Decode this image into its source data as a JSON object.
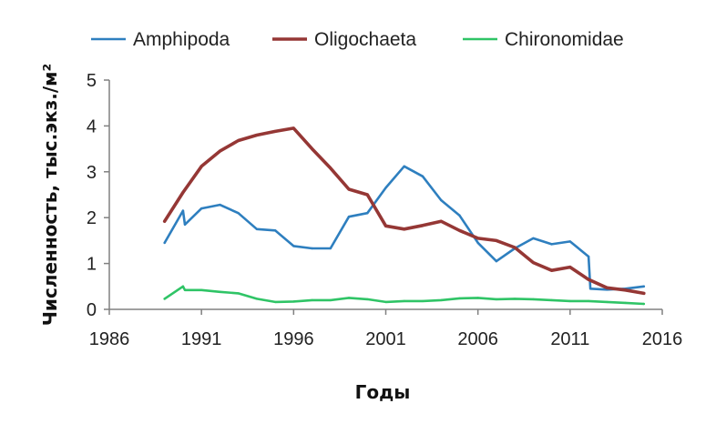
{
  "chart_data": {
    "type": "line",
    "title": "",
    "xlabel": "Годы",
    "ylabel": "Численность, тыс.экз./м²",
    "xlim": [
      1986,
      2016
    ],
    "ylim": [
      0,
      5
    ],
    "x_ticks": [
      "1986",
      "1991",
      "1996",
      "2001",
      "2006",
      "2011",
      "2016"
    ],
    "y_ticks": [
      "0",
      "1",
      "2",
      "3",
      "4",
      "5"
    ],
    "grid": false,
    "legend_position": "top",
    "series": [
      {
        "name": "Amphipoda",
        "color": "#2e7fbf",
        "x": [
          1989,
          1990,
          1990.1,
          1991,
          1992,
          1993,
          1994,
          1995,
          1996,
          1997,
          1998,
          1999,
          2000,
          2001,
          2002,
          2003,
          2004,
          2005,
          2006,
          2007,
          2008,
          2009,
          2010,
          2011,
          2012,
          2012.1,
          2013,
          2014,
          2015
        ],
        "y": [
          1.45,
          2.15,
          1.85,
          2.2,
          2.28,
          2.1,
          1.75,
          1.72,
          1.38,
          1.33,
          1.33,
          2.02,
          2.1,
          2.65,
          3.12,
          2.9,
          2.38,
          2.05,
          1.45,
          1.05,
          1.33,
          1.55,
          1.42,
          1.48,
          1.15,
          0.45,
          0.43,
          0.45,
          0.5
        ]
      },
      {
        "name": "Oligochaeta",
        "color": "#953735",
        "x": [
          1989,
          1990,
          1991,
          1992,
          1993,
          1994,
          1995,
          1996,
          1997,
          1998,
          1999,
          2000,
          2001,
          2002,
          2003,
          2004,
          2005,
          2006,
          2007,
          2008,
          2009,
          2010,
          2011,
          2012,
          2013,
          2014,
          2015
        ],
        "y": [
          1.92,
          2.55,
          3.12,
          3.45,
          3.68,
          3.8,
          3.88,
          3.95,
          3.5,
          3.08,
          2.62,
          2.5,
          1.82,
          1.75,
          1.83,
          1.92,
          1.72,
          1.55,
          1.5,
          1.35,
          1.02,
          0.85,
          0.92,
          0.65,
          0.47,
          0.42,
          0.35
        ]
      },
      {
        "name": "Chironomidae",
        "color": "#2fc466",
        "x": [
          1989,
          1990,
          1990.1,
          1991,
          1992,
          1993,
          1994,
          1995,
          1996,
          1997,
          1998,
          1999,
          2000,
          2001,
          2002,
          2003,
          2004,
          2005,
          2006,
          2007,
          2008,
          2009,
          2010,
          2011,
          2012,
          2013,
          2014,
          2015
        ],
        "y": [
          0.23,
          0.5,
          0.42,
          0.42,
          0.38,
          0.35,
          0.23,
          0.16,
          0.17,
          0.2,
          0.2,
          0.25,
          0.22,
          0.16,
          0.18,
          0.18,
          0.2,
          0.24,
          0.25,
          0.22,
          0.23,
          0.22,
          0.2,
          0.18,
          0.18,
          0.16,
          0.14,
          0.12
        ]
      }
    ]
  }
}
